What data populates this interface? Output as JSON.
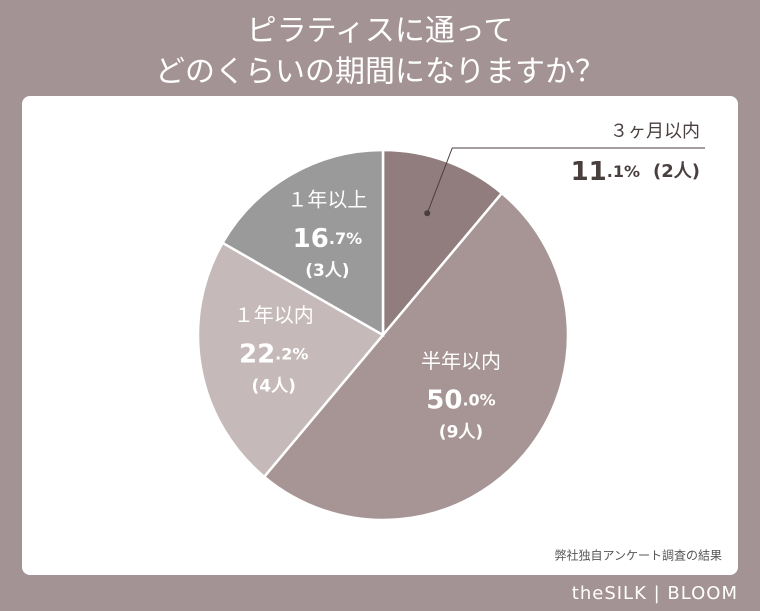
{
  "chart_data": {
    "type": "pie",
    "title": [
      "ピラティスに通って",
      "どのくらいの期間になりますか？"
    ],
    "categories": [
      "３ヶ月以内",
      "半年以内",
      "１年以内",
      "１年以上"
    ],
    "values": [
      11.1,
      50.0,
      22.2,
      16.7
    ],
    "value_labels": [
      "11.1%",
      "50.0%",
      "22.2%",
      "16.7%"
    ],
    "count_labels": [
      "(2人)",
      "(9人)",
      "(4人)",
      "(3人)"
    ],
    "colors": [
      "#917d7d",
      "#a79595",
      "#c5b9b9",
      "#9b9a9a"
    ],
    "source": "弊社独自アンケート調査の結果",
    "brand": "theSILK | BLOOM"
  }
}
